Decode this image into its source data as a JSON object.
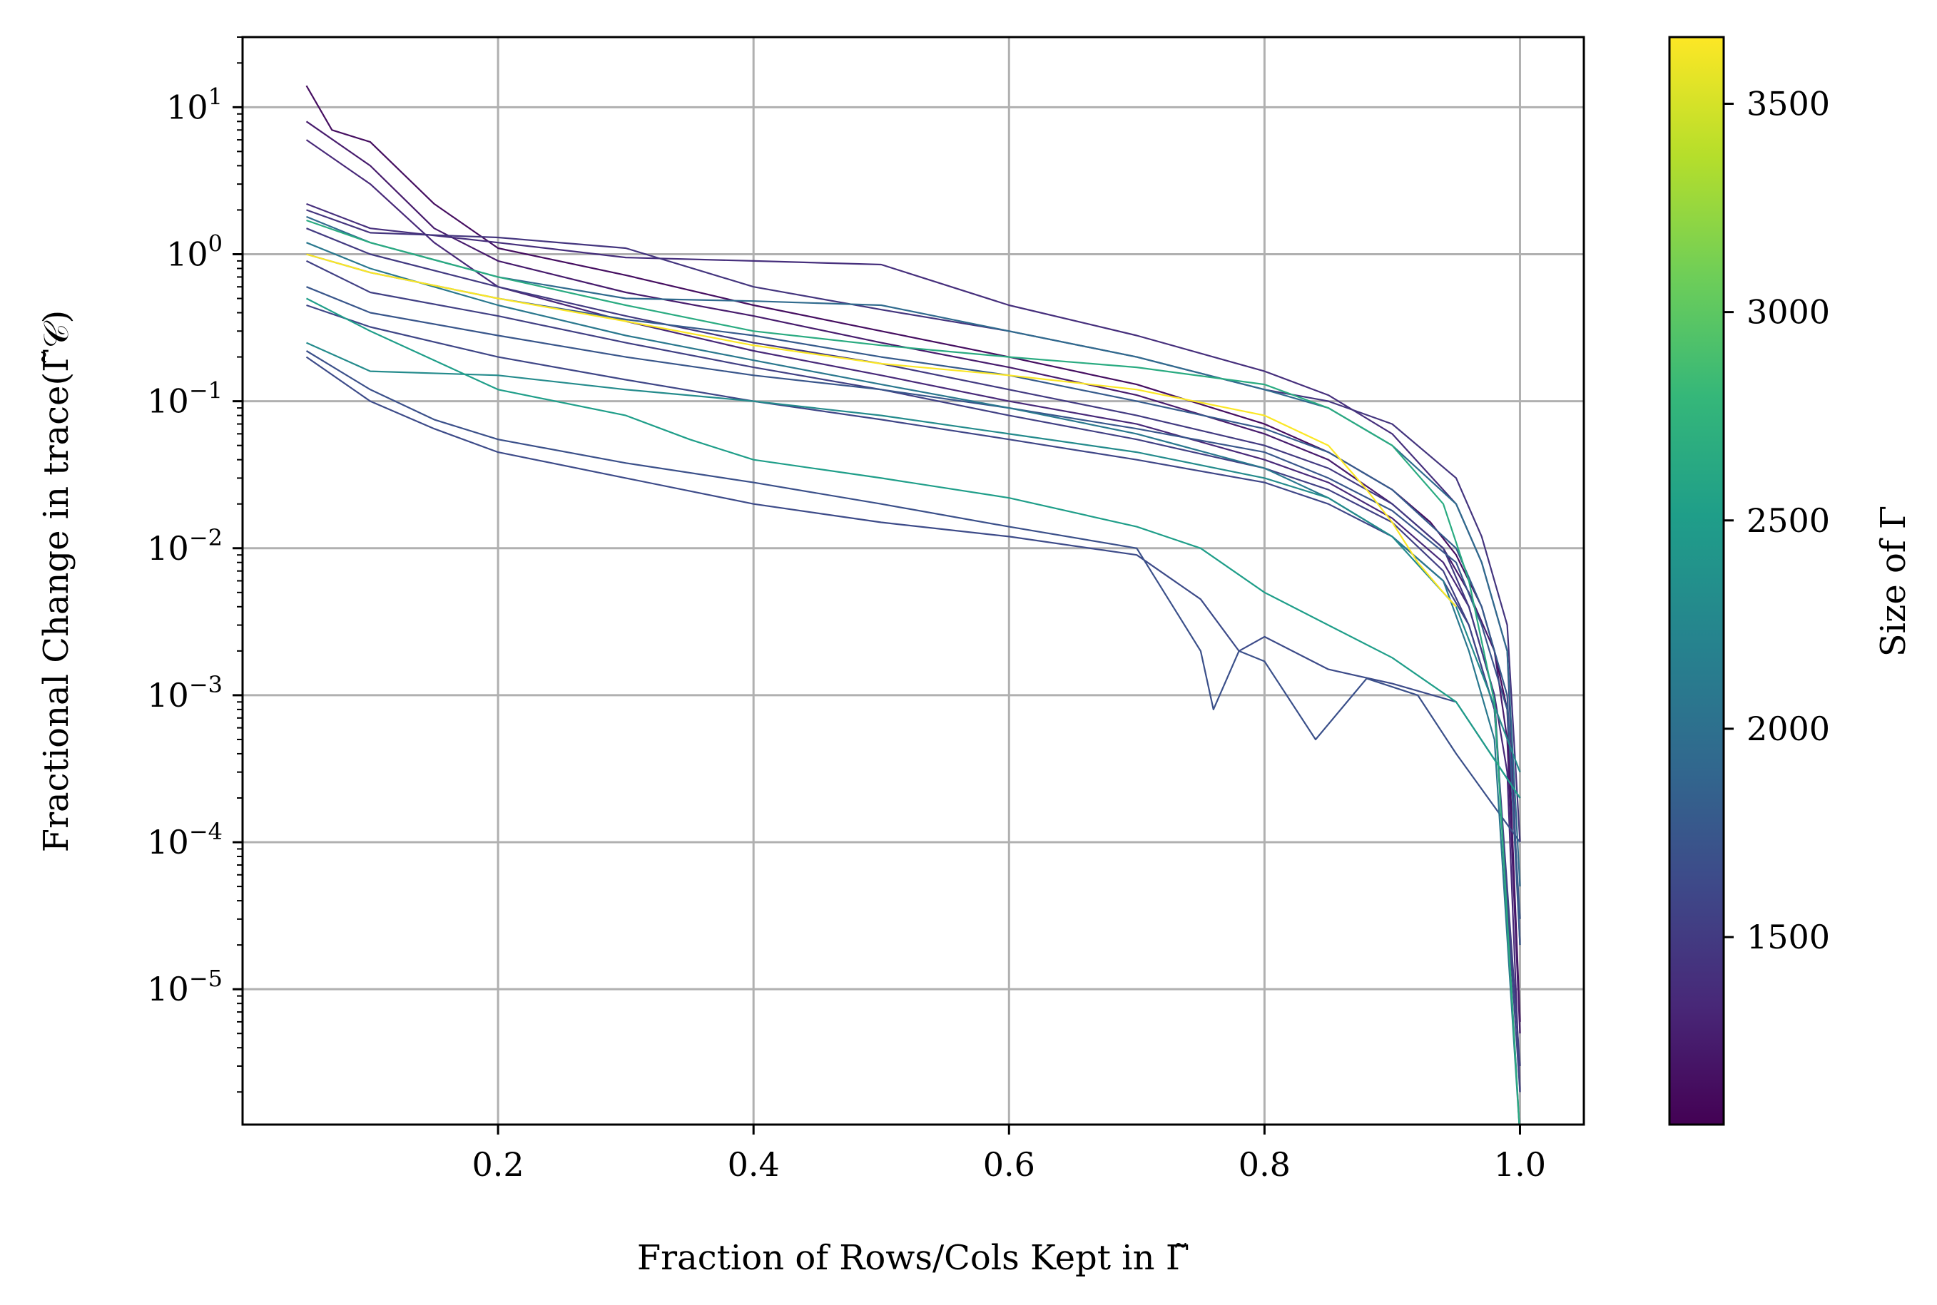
{
  "chart_data": {
    "type": "line",
    "xlabel": "Fraction of Rows/Cols Kept in Γ̃",
    "ylabel": "Fractional Change in trace(Γ̃𝒞)",
    "xlim": [
      0.0,
      1.05
    ],
    "ylim": [
      1.2e-06,
      30
    ],
    "yscale": "log",
    "grid": true,
    "x_ticks": [
      0.2,
      0.4,
      0.6,
      0.8,
      1.0
    ],
    "x_tick_labels": [
      "0.2",
      "0.4",
      "0.6",
      "0.8",
      "1.0"
    ],
    "y_ticks": [
      10.0,
      1.0,
      0.1,
      0.01,
      0.001,
      0.0001,
      1e-05
    ],
    "y_tick_labels": [
      {
        "base": "10",
        "exp": "1"
      },
      {
        "base": "10",
        "exp": "0"
      },
      {
        "base": "10",
        "exp": "−1"
      },
      {
        "base": "10",
        "exp": "−2"
      },
      {
        "base": "10",
        "exp": "−3"
      },
      {
        "base": "10",
        "exp": "−4"
      },
      {
        "base": "10",
        "exp": "−5"
      }
    ],
    "colorbar": {
      "label": "Size of Γ",
      "colormap": "viridis",
      "range": [
        1050,
        3660
      ],
      "ticks": [
        1500,
        2000,
        2500,
        3000,
        3500
      ],
      "tick_labels": [
        "1500",
        "2000",
        "2500",
        "3000",
        "3500"
      ]
    },
    "colors": {
      "viridis": [
        "#440154",
        "#482878",
        "#3e4989",
        "#31688e",
        "#26828e",
        "#1f9e89",
        "#35b779",
        "#6ece58",
        "#b5de2b",
        "#fde725"
      ],
      "grid": "#b0b0b0",
      "axis": "#000000"
    },
    "series": [
      {
        "size": 1150,
        "x": [
          0.05,
          0.07,
          0.1,
          0.15,
          0.2,
          0.3,
          0.4,
          0.5,
          0.6,
          0.7,
          0.8,
          0.85,
          0.9,
          0.93,
          0.95,
          0.97,
          0.98,
          0.99,
          1.0
        ],
        "y": [
          14,
          7,
          5.8,
          2.2,
          1.1,
          0.72,
          0.45,
          0.3,
          0.2,
          0.13,
          0.07,
          0.045,
          0.025,
          0.015,
          0.009,
          0.004,
          0.002,
          0.0008,
          6e-06
        ]
      },
      {
        "size": 1250,
        "x": [
          0.05,
          0.1,
          0.15,
          0.2,
          0.3,
          0.4,
          0.5,
          0.6,
          0.7,
          0.8,
          0.85,
          0.9,
          0.94,
          0.96,
          0.98,
          0.99,
          1.0
        ],
        "y": [
          8,
          4,
          1.5,
          0.9,
          0.55,
          0.38,
          0.25,
          0.17,
          0.11,
          0.06,
          0.04,
          0.02,
          0.01,
          0.005,
          0.002,
          0.0005,
          5e-06
        ]
      },
      {
        "size": 1350,
        "x": [
          0.05,
          0.1,
          0.15,
          0.2,
          0.3,
          0.4,
          0.5,
          0.6,
          0.7,
          0.8,
          0.85,
          0.9,
          0.94,
          0.96,
          0.98,
          0.99,
          1.0
        ],
        "y": [
          6,
          3,
          1.2,
          0.6,
          0.35,
          0.22,
          0.15,
          0.1,
          0.07,
          0.04,
          0.028,
          0.016,
          0.008,
          0.004,
          0.001,
          0.0003,
          2e-06
        ]
      },
      {
        "size": 1400,
        "x": [
          0.05,
          0.1,
          0.2,
          0.3,
          0.4,
          0.5,
          0.6,
          0.7,
          0.8,
          0.85,
          0.9,
          0.95,
          0.97,
          0.99,
          1.0
        ],
        "y": [
          2.2,
          1.5,
          1.2,
          0.95,
          0.9,
          0.85,
          0.45,
          0.28,
          0.16,
          0.11,
          0.06,
          0.02,
          0.008,
          0.002,
          2e-05
        ]
      },
      {
        "size": 1450,
        "x": [
          0.05,
          0.1,
          0.2,
          0.3,
          0.4,
          0.5,
          0.6,
          0.7,
          0.8,
          0.85,
          0.9,
          0.95,
          0.97,
          0.99,
          1.0
        ],
        "y": [
          2.0,
          1.4,
          1.3,
          1.1,
          0.6,
          0.42,
          0.3,
          0.2,
          0.12,
          0.1,
          0.07,
          0.03,
          0.012,
          0.003,
          0.0001
        ]
      },
      {
        "size": 1500,
        "x": [
          0.05,
          0.1,
          0.2,
          0.3,
          0.4,
          0.5,
          0.6,
          0.7,
          0.8,
          0.85,
          0.9,
          0.94,
          0.96,
          0.98,
          1.0
        ],
        "y": [
          1.5,
          1.0,
          0.6,
          0.38,
          0.25,
          0.18,
          0.12,
          0.08,
          0.05,
          0.035,
          0.02,
          0.01,
          0.004,
          0.001,
          1e-06
        ]
      },
      {
        "size": 1550,
        "x": [
          0.05,
          0.1,
          0.2,
          0.3,
          0.4,
          0.5,
          0.6,
          0.7,
          0.8,
          0.85,
          0.9,
          0.94,
          0.96,
          0.98,
          1.0
        ],
        "y": [
          0.9,
          0.55,
          0.38,
          0.25,
          0.17,
          0.12,
          0.08,
          0.055,
          0.035,
          0.025,
          0.015,
          0.007,
          0.003,
          0.0008,
          3e-06
        ]
      },
      {
        "size": 1600,
        "x": [
          0.05,
          0.1,
          0.2,
          0.3,
          0.4,
          0.5,
          0.6,
          0.7,
          0.8,
          0.85,
          0.9,
          0.94,
          0.96,
          0.98,
          1.0
        ],
        "y": [
          0.45,
          0.32,
          0.2,
          0.14,
          0.1,
          0.075,
          0.055,
          0.04,
          0.028,
          0.02,
          0.012,
          0.006,
          0.003,
          0.0008,
          2e-06
        ]
      },
      {
        "size": 1650,
        "x": [
          0.05,
          0.1,
          0.15,
          0.2,
          0.3,
          0.4,
          0.5,
          0.6,
          0.7,
          0.75,
          0.78,
          0.8,
          0.85,
          0.9,
          0.95,
          1.0
        ],
        "y": [
          0.2,
          0.1,
          0.065,
          0.045,
          0.03,
          0.02,
          0.015,
          0.012,
          0.009,
          0.0045,
          0.002,
          0.0025,
          0.0015,
          0.0012,
          0.0009,
          0.0002
        ]
      },
      {
        "size": 1700,
        "x": [
          0.05,
          0.1,
          0.15,
          0.2,
          0.3,
          0.4,
          0.5,
          0.6,
          0.7,
          0.75,
          0.76,
          0.78,
          0.8,
          0.84,
          0.88,
          0.92,
          0.95,
          1.0
        ],
        "y": [
          0.22,
          0.12,
          0.075,
          0.055,
          0.038,
          0.028,
          0.02,
          0.014,
          0.01,
          0.002,
          0.0008,
          0.002,
          0.0017,
          0.0005,
          0.0013,
          0.001,
          0.0004,
          0.0001
        ]
      },
      {
        "size": 1750,
        "x": [
          0.05,
          0.1,
          0.2,
          0.3,
          0.4,
          0.5,
          0.6,
          0.7,
          0.8,
          0.85,
          0.9,
          0.95,
          0.97,
          0.99,
          1.0
        ],
        "y": [
          0.6,
          0.4,
          0.28,
          0.2,
          0.15,
          0.12,
          0.09,
          0.065,
          0.045,
          0.03,
          0.018,
          0.008,
          0.003,
          0.0008,
          3e-05
        ]
      },
      {
        "size": 1800,
        "x": [
          0.05,
          0.1,
          0.2,
          0.3,
          0.4,
          0.5,
          0.6,
          0.7,
          0.8,
          0.85,
          0.9,
          0.95,
          0.97,
          0.99,
          1.0
        ],
        "y": [
          1.0,
          0.75,
          0.5,
          0.36,
          0.28,
          0.2,
          0.15,
          0.1,
          0.065,
          0.045,
          0.025,
          0.01,
          0.004,
          0.001,
          2e-05
        ]
      },
      {
        "size": 1950,
        "x": [
          0.05,
          0.1,
          0.2,
          0.3,
          0.4,
          0.5,
          0.6,
          0.7,
          0.8,
          0.85,
          0.9,
          0.95,
          0.97,
          0.99,
          1.0
        ],
        "y": [
          1.8,
          1.2,
          0.7,
          0.5,
          0.48,
          0.45,
          0.3,
          0.2,
          0.12,
          0.09,
          0.05,
          0.02,
          0.008,
          0.002,
          5e-05
        ]
      },
      {
        "size": 2100,
        "x": [
          0.05,
          0.1,
          0.2,
          0.3,
          0.4,
          0.5,
          0.6,
          0.7,
          0.8,
          0.85,
          0.9,
          0.94,
          0.96,
          0.98,
          1.0
        ],
        "y": [
          1.2,
          0.8,
          0.45,
          0.28,
          0.19,
          0.13,
          0.09,
          0.06,
          0.035,
          0.022,
          0.012,
          0.006,
          0.002,
          0.0005,
          1e-06
        ]
      },
      {
        "size": 2300,
        "x": [
          0.05,
          0.1,
          0.2,
          0.3,
          0.4,
          0.5,
          0.6,
          0.7,
          0.8,
          0.85,
          0.9,
          0.95,
          1.0
        ],
        "y": [
          0.25,
          0.16,
          0.15,
          0.12,
          0.1,
          0.08,
          0.06,
          0.045,
          0.03,
          0.022,
          0.012,
          0.004,
          0.0003
        ]
      },
      {
        "size": 2500,
        "x": [
          0.05,
          0.1,
          0.2,
          0.3,
          0.35,
          0.4,
          0.5,
          0.6,
          0.7,
          0.75,
          0.8,
          0.85,
          0.9,
          0.95,
          1.0
        ],
        "y": [
          0.5,
          0.3,
          0.12,
          0.08,
          0.055,
          0.04,
          0.03,
          0.022,
          0.014,
          0.01,
          0.005,
          0.003,
          0.0018,
          0.0009,
          0.0002
        ]
      },
      {
        "size": 2650,
        "x": [
          0.05,
          0.1,
          0.2,
          0.3,
          0.4,
          0.5,
          0.6,
          0.7,
          0.8,
          0.85,
          0.9,
          0.94,
          0.96,
          0.98,
          1.0
        ],
        "y": [
          1.7,
          1.2,
          0.7,
          0.45,
          0.3,
          0.24,
          0.2,
          0.17,
          0.13,
          0.09,
          0.05,
          0.02,
          0.006,
          0.0009,
          1e-06
        ]
      },
      {
        "size": 3650,
        "x": [
          0.05,
          0.1,
          0.2,
          0.3,
          0.4,
          0.5,
          0.6,
          0.7,
          0.8,
          0.85,
          0.88,
          0.9,
          0.92,
          0.94,
          0.95
        ],
        "y": [
          1.0,
          0.75,
          0.5,
          0.35,
          0.24,
          0.18,
          0.15,
          0.12,
          0.08,
          0.05,
          0.025,
          0.015,
          0.008,
          0.005,
          0.004
        ]
      }
    ]
  }
}
